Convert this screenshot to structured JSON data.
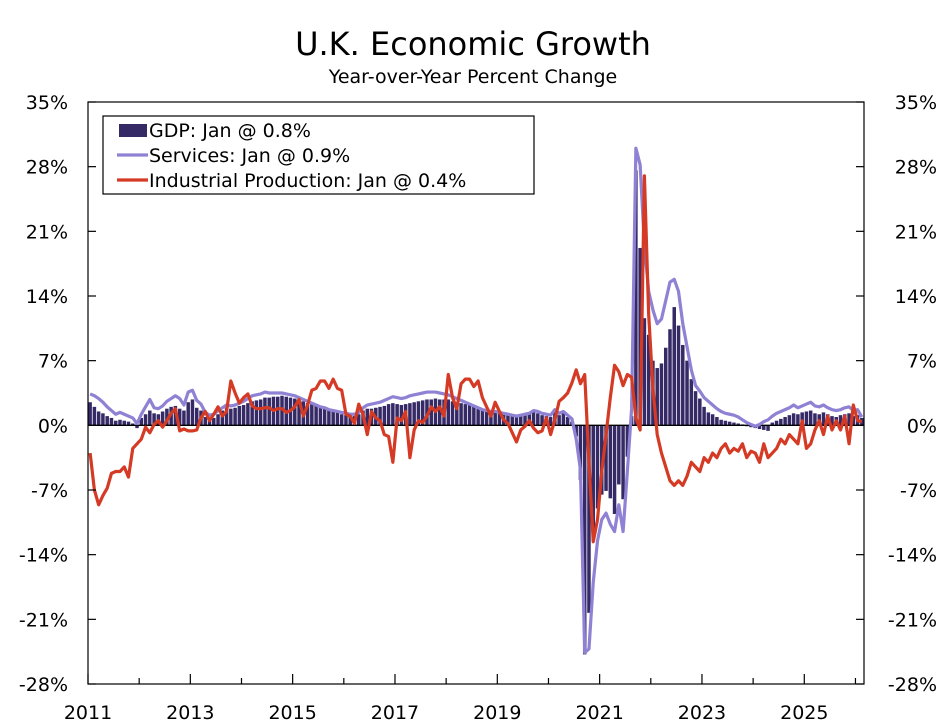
{
  "chart_data": {
    "type": "bar+line",
    "title": "U.K. Economic Growth",
    "subtitle": "Year-over-Year Percent Change",
    "xlabel": "",
    "ylabel": "",
    "ylim": [
      -28,
      35
    ],
    "yticks": [
      "35%",
      "28%",
      "21%",
      "14%",
      "7%",
      "0%",
      "-7%",
      "-14%",
      "-21%",
      "-28%"
    ],
    "ytick_values": [
      35,
      28,
      21,
      14,
      7,
      0,
      -7,
      -14,
      -21,
      -28
    ],
    "xlim": [
      2011.0,
      2026.167
    ],
    "xticks": [
      "2011",
      "2013",
      "2015",
      "2017",
      "2019",
      "2021",
      "2023",
      "2025"
    ],
    "xtick_values": [
      2011,
      2013,
      2015,
      2017,
      2019,
      2021,
      2023,
      2025
    ],
    "grid": false,
    "legend_position": "top-left",
    "series": [
      {
        "name": "GDP: Jan @ 0.8%",
        "kind": "bar",
        "color": "#352a66",
        "start": "2011-01",
        "values": [
          2.5,
          2.0,
          1.5,
          1.3,
          1.0,
          0.8,
          0.5,
          0.6,
          0.5,
          0.4,
          0.2,
          -0.3,
          0.8,
          1.2,
          1.6,
          1.3,
          1.2,
          1.5,
          1.8,
          2.0,
          2.1,
          1.8,
          1.6,
          2.5,
          2.8,
          1.9,
          1.6,
          0.9,
          0.7,
          0.8,
          1.2,
          1.6,
          1.9,
          1.8,
          1.9,
          2.1,
          2.2,
          2.4,
          2.6,
          2.7,
          2.8,
          3.0,
          3.0,
          3.1,
          3.1,
          3.2,
          3.1,
          3.0,
          2.9,
          2.8,
          2.6,
          2.4,
          2.3,
          2.2,
          2.1,
          2.0,
          1.8,
          1.6,
          1.4,
          1.2,
          1.1,
          1.0,
          1.0,
          1.2,
          1.6,
          1.8,
          1.8,
          1.9,
          2.0,
          2.1,
          2.3,
          2.4,
          2.3,
          2.2,
          2.3,
          2.4,
          2.5,
          2.6,
          2.7,
          2.8,
          2.8,
          2.9,
          2.8,
          2.8,
          2.8,
          2.6,
          2.5,
          2.4,
          2.3,
          2.2,
          2.0,
          1.8,
          1.6,
          1.5,
          1.4,
          1.4,
          1.3,
          1.2,
          1.1,
          1.0,
          0.9,
          1.0,
          1.1,
          1.2,
          1.4,
          1.3,
          1.1,
          1.0,
          0.9,
          1.5,
          1.1,
          1.3,
          0.9,
          0.4,
          -1.2,
          -5.9,
          -24.8,
          -20.3,
          -12.5,
          -9.0,
          -7.5,
          -7.1,
          -7.9,
          -9.6,
          -6.4,
          -8.0,
          -3.4,
          1.0,
          27.6,
          19.2,
          11.6,
          9.8,
          7.0,
          6.2,
          6.7,
          8.4,
          10.4,
          12.8,
          10.8,
          8.7,
          7.0,
          5.0,
          3.7,
          2.9,
          2.0,
          1.4,
          1.2,
          0.9,
          0.6,
          0.5,
          0.4,
          0.3,
          0.2,
          0.1,
          -0.1,
          -0.2,
          -0.3,
          -0.4,
          -0.5,
          -0.6,
          0.3,
          0.5,
          0.7,
          0.9,
          1.1,
          1.3,
          1.2,
          1.4,
          1.5,
          1.6,
          1.3,
          1.2,
          1.4,
          1.2,
          1.0,
          0.9,
          1.1,
          1.2,
          1.3,
          1.0,
          1.1,
          0.8
        ]
      },
      {
        "name": "Services: Jan @ 0.9%",
        "kind": "line",
        "color": "#8f82d4",
        "start": "2011-01",
        "values": [
          3.4,
          3.2,
          2.9,
          2.5,
          2.0,
          1.6,
          1.2,
          1.4,
          1.2,
          1.0,
          0.8,
          0.2,
          1.2,
          2.0,
          2.8,
          1.9,
          1.8,
          2.1,
          2.6,
          2.9,
          3.2,
          2.9,
          2.2,
          3.6,
          3.8,
          2.7,
          2.3,
          1.4,
          1.1,
          1.2,
          1.6,
          1.9,
          2.2,
          2.1,
          2.2,
          2.4,
          2.6,
          2.9,
          3.2,
          3.3,
          3.4,
          3.6,
          3.5,
          3.5,
          3.5,
          3.5,
          3.4,
          3.3,
          3.2,
          3.0,
          2.8,
          2.6,
          2.4,
          2.2,
          2.0,
          1.9,
          1.7,
          1.6,
          1.5,
          1.4,
          1.3,
          1.2,
          1.2,
          1.4,
          1.9,
          2.2,
          2.3,
          2.4,
          2.5,
          2.7,
          2.9,
          3.1,
          3.0,
          2.9,
          3.0,
          3.2,
          3.3,
          3.4,
          3.5,
          3.6,
          3.6,
          3.6,
          3.5,
          3.4,
          3.3,
          3.1,
          2.9,
          2.7,
          2.5,
          2.3,
          2.1,
          1.9,
          1.7,
          1.6,
          1.5,
          1.5,
          1.4,
          1.3,
          1.2,
          1.1,
          1.0,
          1.1,
          1.2,
          1.3,
          1.6,
          1.5,
          1.3,
          1.2,
          1.1,
          1.7,
          1.3,
          1.5,
          1.1,
          0.7,
          -1.5,
          -4.8,
          -24.6,
          -24.2,
          -17.0,
          -12.5,
          -10.2,
          -9.5,
          -10.7,
          -11.5,
          -8.6,
          -11.5,
          -5.0,
          1.8,
          30.0,
          28.2,
          19.5,
          14.5,
          12.5,
          11.0,
          11.5,
          13.5,
          15.5,
          15.8,
          14.5,
          11.0,
          8.5,
          6.0,
          4.3,
          3.7,
          3.0,
          2.6,
          2.2,
          1.8,
          1.5,
          1.3,
          1.2,
          1.1,
          0.9,
          0.6,
          0.3,
          0.1,
          -0.1,
          0.1,
          0.4,
          0.6,
          1.0,
          1.3,
          1.5,
          1.7,
          1.9,
          2.2,
          1.9,
          2.1,
          2.3,
          2.5,
          2.1,
          2.0,
          2.2,
          1.9,
          1.7,
          1.6,
          1.7,
          1.9,
          2.0,
          1.6,
          1.7,
          0.9
        ]
      },
      {
        "name": "Industrial Production: Jan @ 0.4%",
        "kind": "line",
        "color": "#d53a24",
        "start": "2011-01",
        "values": [
          -3.0,
          -7.0,
          -8.6,
          -7.6,
          -6.8,
          -5.2,
          -5.0,
          -5.0,
          -4.5,
          -5.6,
          -2.5,
          -2.0,
          -1.5,
          -0.2,
          -0.8,
          0.1,
          0.5,
          -0.2,
          0.5,
          1.3,
          1.8,
          -0.6,
          -0.4,
          -0.6,
          -0.6,
          -0.5,
          0.8,
          1.5,
          0.5,
          1.2,
          2.0,
          1.0,
          1.5,
          4.8,
          3.5,
          2.4,
          3.0,
          3.4,
          2.1,
          1.8,
          1.8,
          1.9,
          1.9,
          1.6,
          1.8,
          1.8,
          1.4,
          1.6,
          2.0,
          2.8,
          1.0,
          2.2,
          3.8,
          4.0,
          4.8,
          4.8,
          4.0,
          5.0,
          4.0,
          3.8,
          1.2,
          1.0,
          0.2,
          2.3,
          1.2,
          -1.0,
          1.5,
          0.8,
          0.5,
          -1.0,
          -1.2,
          -4.0,
          0.8,
          0.5,
          1.5,
          -3.5,
          -0.5,
          0.5,
          0.3,
          1.0,
          2.0,
          1.5,
          2.0,
          1.0,
          5.5,
          3.0,
          1.8,
          4.5,
          5.0,
          5.0,
          4.2,
          4.8,
          3.0,
          2.0,
          1.0,
          2.5,
          1.5,
          0.6,
          0.2,
          -0.8,
          -1.8,
          -0.5,
          -0.1,
          0.5,
          -0.3,
          -0.8,
          -0.6,
          0.8,
          -1.0,
          0.6,
          2.6,
          3.0,
          3.5,
          4.6,
          6.0,
          4.5,
          5.5,
          -4.0,
          -12.6,
          -10.2,
          -5.0,
          -1.0,
          3.0,
          6.5,
          5.8,
          4.3,
          5.5,
          5.2,
          0.8,
          -0.5,
          27.0,
          12.0,
          4.0,
          -1.0,
          -3.0,
          -4.5,
          -6.0,
          -6.5,
          -6.0,
          -6.5,
          -5.5,
          -4.0,
          -4.5,
          -5.0,
          -3.5,
          -4.0,
          -3.0,
          -3.5,
          -2.5,
          -2.0,
          -3.0,
          -2.5,
          -2.8,
          -2.0,
          -3.5,
          -2.8,
          -3.0,
          -4.0,
          -2.0,
          -3.5,
          -3.0,
          -2.5,
          -1.5,
          -2.0,
          -1.0,
          -1.5,
          -2.0,
          0.5,
          -2.5,
          -2.0,
          -0.5,
          0.5,
          -1.0,
          1.0,
          -0.5,
          0.5,
          -0.5,
          1.0,
          -2.0,
          2.2,
          0.5,
          0.4
        ]
      }
    ]
  }
}
